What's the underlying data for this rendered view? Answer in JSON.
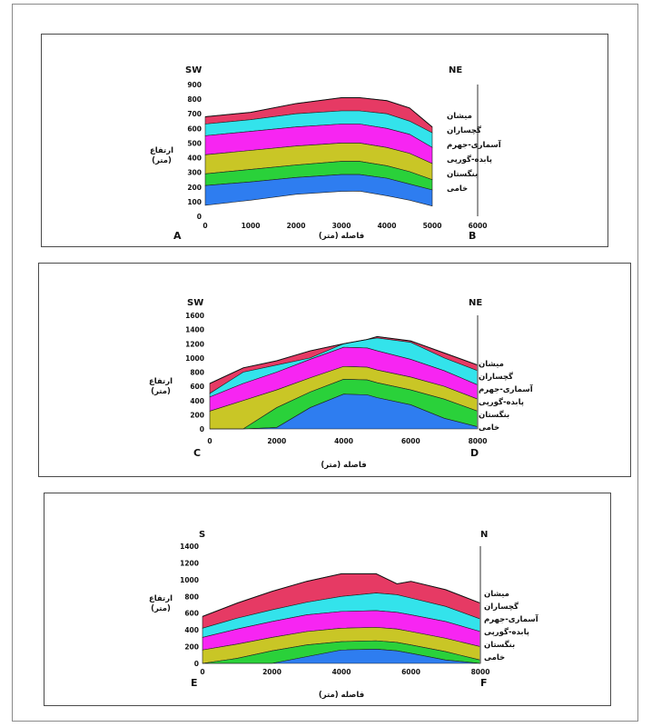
{
  "layer_colors": [
    "#2e7df0",
    "#2ad13a",
    "#c9c626",
    "#f725f2",
    "#33e3eb",
    "#e63a64"
  ],
  "chart_data": [
    {
      "type": "area",
      "section": [
        "A",
        "B"
      ],
      "orientation": {
        "left": "SW",
        "right": "NE"
      },
      "xlabel": "فاصله (متر)",
      "ylabel": [
        "ارتفاع",
        "(متر)"
      ],
      "xlim": [
        0,
        6000
      ],
      "ylim": [
        0,
        900
      ],
      "x_ticks": [
        0,
        1000,
        2000,
        3000,
        4000,
        5000,
        6000
      ],
      "y_ticks": [
        0,
        100,
        200,
        300,
        400,
        500,
        600,
        700,
        800,
        900
      ],
      "x": [
        0,
        1000,
        2000,
        3000,
        3400,
        4000,
        4500,
        5000
      ],
      "bottom": [
        75,
        110,
        150,
        170,
        172,
        140,
        110,
        70
      ],
      "series": [
        {
          "name": "خامی",
          "top": [
            210,
            235,
            265,
            285,
            285,
            260,
            220,
            180
          ]
        },
        {
          "name": "بنگستان",
          "top": [
            290,
            320,
            350,
            375,
            375,
            345,
            305,
            250
          ]
        },
        {
          "name": "پابده-گورپی",
          "top": [
            420,
            450,
            480,
            500,
            500,
            470,
            430,
            360
          ]
        },
        {
          "name": "آسماری-جهرم",
          "top": [
            550,
            580,
            610,
            630,
            630,
            600,
            560,
            470
          ]
        },
        {
          "name": "گچساران",
          "top": [
            630,
            660,
            700,
            720,
            720,
            700,
            650,
            570
          ]
        },
        {
          "name": "میشان",
          "top": [
            680,
            710,
            770,
            810,
            810,
            790,
            740,
            610
          ]
        }
      ]
    },
    {
      "type": "area",
      "section": [
        "C",
        "D"
      ],
      "orientation": {
        "left": "SW",
        "right": "NE"
      },
      "xlabel": "فاصله (متر)",
      "ylabel": [
        "ارتفاع",
        "(متر)"
      ],
      "xlim": [
        0,
        8000
      ],
      "ylim": [
        0,
        1600
      ],
      "x_ticks": [
        0,
        2000,
        4000,
        6000,
        8000
      ],
      "y_ticks": [
        0,
        200,
        400,
        600,
        800,
        1000,
        1200,
        1400,
        1600
      ],
      "x": [
        0,
        1000,
        2000,
        3000,
        4000,
        4700,
        5000,
        6000,
        7000,
        8000
      ],
      "bottom": [
        0,
        0,
        0,
        0,
        0,
        0,
        0,
        0,
        0,
        0
      ],
      "series": [
        {
          "name": "خامی",
          "top": [
            0,
            0,
            20,
            300,
            490,
            480,
            440,
            340,
            150,
            30
          ]
        },
        {
          "name": "بنگستان",
          "top": [
            0,
            0,
            300,
            520,
            700,
            690,
            650,
            550,
            420,
            250
          ]
        },
        {
          "name": "پابده-گورپی",
          "top": [
            250,
            400,
            550,
            720,
            880,
            870,
            830,
            730,
            600,
            420
          ]
        },
        {
          "name": "آسماری-جهرم",
          "top": [
            450,
            640,
            800,
            980,
            1150,
            1140,
            1100,
            980,
            820,
            620
          ]
        },
        {
          "name": "گچساران",
          "top": [
            500,
            800,
            900,
            1000,
            1200,
            1260,
            1280,
            1220,
            1000,
            820
          ]
        },
        {
          "name": "میشان",
          "top": [
            640,
            860,
            960,
            1100,
            1200,
            1260,
            1300,
            1240,
            1070,
            900
          ]
        }
      ]
    },
    {
      "type": "area",
      "section": [
        "E",
        "F"
      ],
      "orientation": {
        "left": "S",
        "right": "N"
      },
      "xlabel": "فاصله (متر)",
      "ylabel": [
        "ارتفاع",
        "(متر)"
      ],
      "xlim": [
        0,
        8000
      ],
      "ylim": [
        0,
        1400
      ],
      "x_ticks": [
        0,
        2000,
        4000,
        6000,
        8000
      ],
      "y_ticks": [
        0,
        200,
        400,
        600,
        800,
        1000,
        1200,
        1400
      ],
      "x": [
        0,
        1000,
        2000,
        3000,
        4000,
        5000,
        5600,
        6000,
        7000,
        8000
      ],
      "bottom": [
        0,
        0,
        0,
        0,
        0,
        0,
        0,
        0,
        0,
        0
      ],
      "series": [
        {
          "name": "خامی",
          "top": [
            0,
            0,
            0,
            80,
            160,
            170,
            150,
            120,
            40,
            0
          ]
        },
        {
          "name": "بنگستان",
          "top": [
            0,
            60,
            150,
            220,
            260,
            270,
            250,
            220,
            140,
            40
          ]
        },
        {
          "name": "پابده-گورپی",
          "top": [
            160,
            230,
            310,
            380,
            420,
            430,
            410,
            380,
            300,
            200
          ]
        },
        {
          "name": "آسماری-جهرم",
          "top": [
            310,
            410,
            500,
            580,
            620,
            630,
            610,
            580,
            500,
            380
          ]
        },
        {
          "name": "گچساران",
          "top": [
            420,
            540,
            640,
            730,
            800,
            840,
            820,
            780,
            680,
            530
          ]
        },
        {
          "name": "میشان",
          "top": [
            560,
            720,
            860,
            980,
            1070,
            1070,
            950,
            980,
            880,
            720
          ]
        }
      ]
    }
  ]
}
